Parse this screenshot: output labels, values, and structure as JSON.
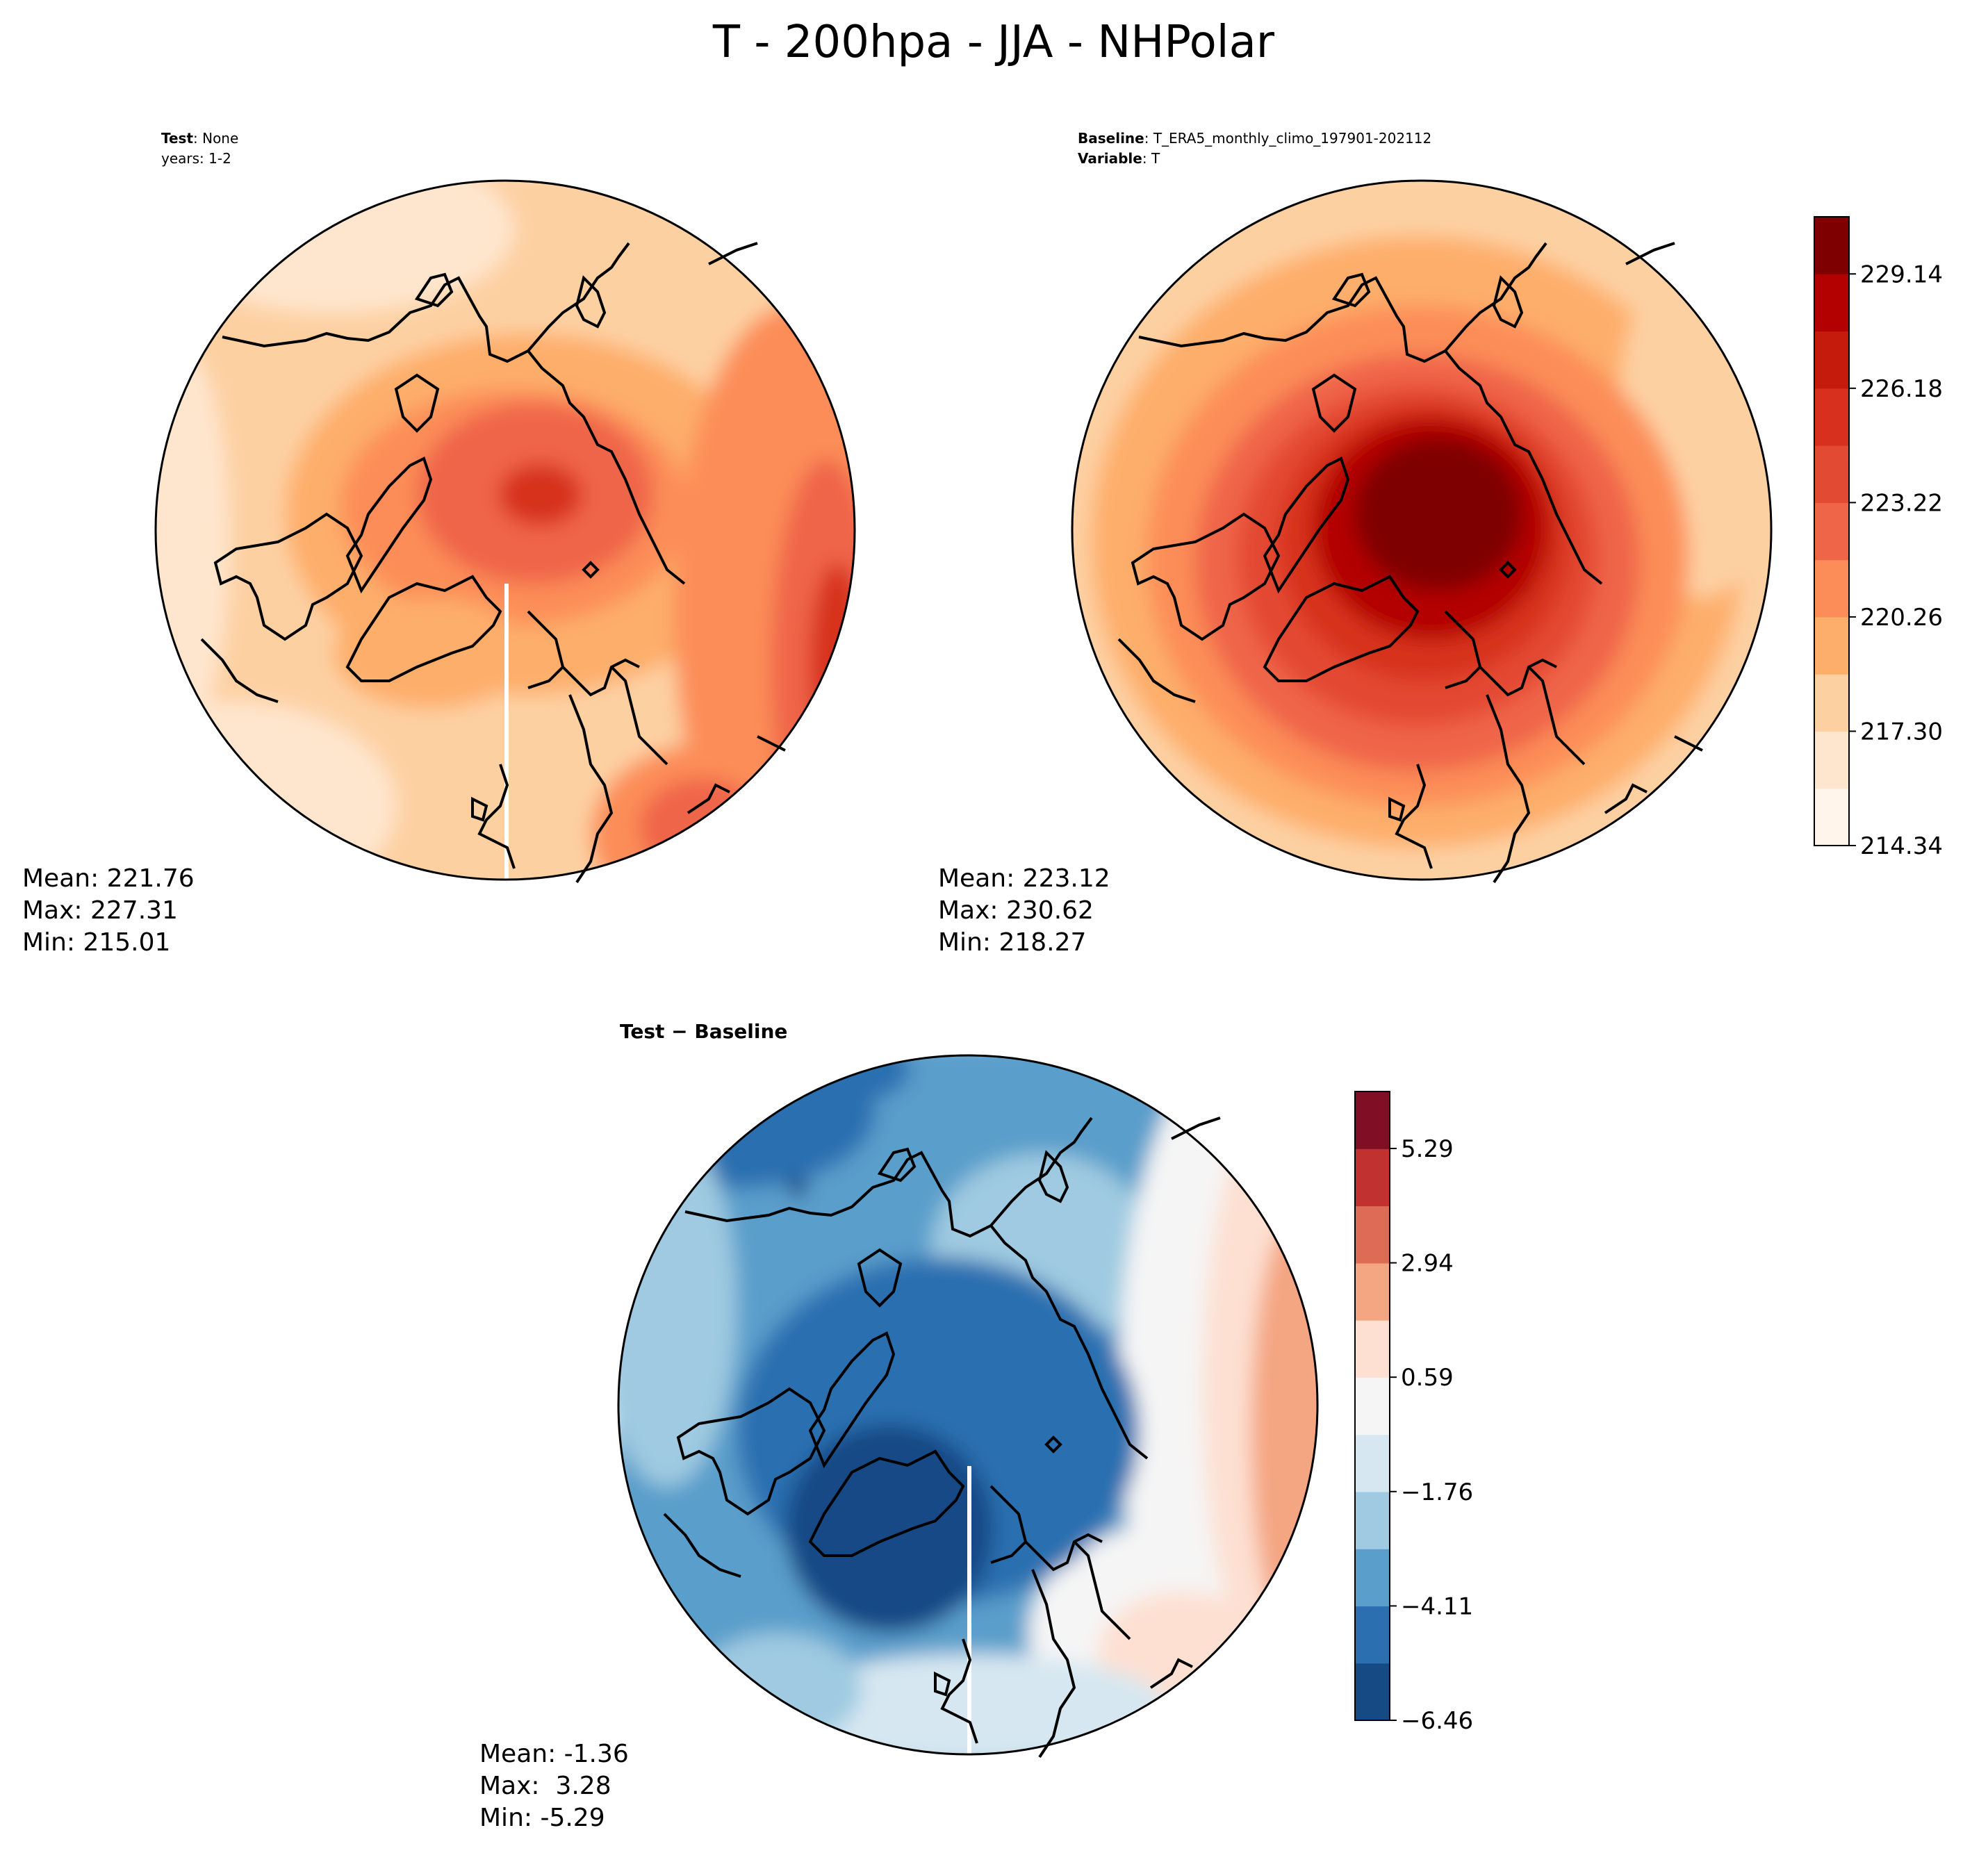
{
  "title": "T - 200hpa - JJA - NHPolar",
  "panels": [
    {
      "id": "test",
      "header_lines": [
        {
          "bold": "Test",
          "rest": ": None"
        },
        {
          "bold": "",
          "rest": "years: 1-2"
        }
      ],
      "stats": [
        "Mean: 221.76",
        "Max: 227.31",
        "Min: 215.01"
      ],
      "colormap": "reds"
    },
    {
      "id": "baseline",
      "header_lines": [
        {
          "bold": "Baseline",
          "rest": ": T_ERA5_monthly_climo_197901-202112"
        },
        {
          "bold": "Variable",
          "rest": ": T"
        }
      ],
      "stats": [
        "Mean: 223.12",
        "Max: 230.62",
        "Min: 218.27"
      ],
      "colormap": "reds"
    },
    {
      "id": "diff",
      "header_lines": [
        {
          "bold": "Test − Baseline",
          "rest": ""
        }
      ],
      "stats": [
        "Mean: -1.36",
        "Max:  3.28",
        "Min: -5.29"
      ],
      "colormap": "rdbu"
    }
  ],
  "chart_data": [
    {
      "type": "heatmap",
      "name": "Test",
      "projection": "north-polar-stereographic",
      "variable": "T",
      "mean": 221.76,
      "max": 227.31,
      "min": 215.01,
      "colorbar_ref": "reds"
    },
    {
      "type": "heatmap",
      "name": "Baseline",
      "projection": "north-polar-stereographic",
      "variable": "T",
      "mean": 223.12,
      "max": 230.62,
      "min": 218.27,
      "colorbar_ref": "reds"
    },
    {
      "type": "heatmap",
      "name": "Test - Baseline",
      "projection": "north-polar-stereographic",
      "variable": "T",
      "mean": -1.36,
      "max": 3.28,
      "min": -5.29,
      "colorbar_ref": "rdbu"
    }
  ],
  "colorbars": {
    "reds": {
      "min": 214.34,
      "max": 230.62,
      "ticks": [
        214.34,
        217.3,
        220.26,
        223.22,
        226.18,
        229.14
      ],
      "tick_labels": [
        "214.34",
        "217.30",
        "220.26",
        "223.22",
        "226.18",
        "229.14"
      ],
      "colors": [
        "#fff5eb",
        "#fee6ce",
        "#fdd0a2",
        "#fdae6b",
        "#fc8d59",
        "#ef6548",
        "#e34a33",
        "#d7301f",
        "#c51b0c",
        "#b30000",
        "#7f0000"
      ]
    },
    "rdbu": {
      "min": -6.46,
      "max": 6.46,
      "ticks": [
        -6.46,
        -4.11,
        -1.76,
        0.59,
        2.94,
        5.29
      ],
      "tick_labels": [
        "−6.46",
        "−4.11",
        "−1.76",
        "0.59",
        "2.94",
        "5.29"
      ],
      "colors": [
        "#154a85",
        "#2c6fb0",
        "#5a9ecb",
        "#9fcae1",
        "#d6e7f1",
        "#f5f5f5",
        "#fde0d2",
        "#f4a582",
        "#de6b55",
        "#c0312f",
        "#800f26"
      ]
    }
  }
}
